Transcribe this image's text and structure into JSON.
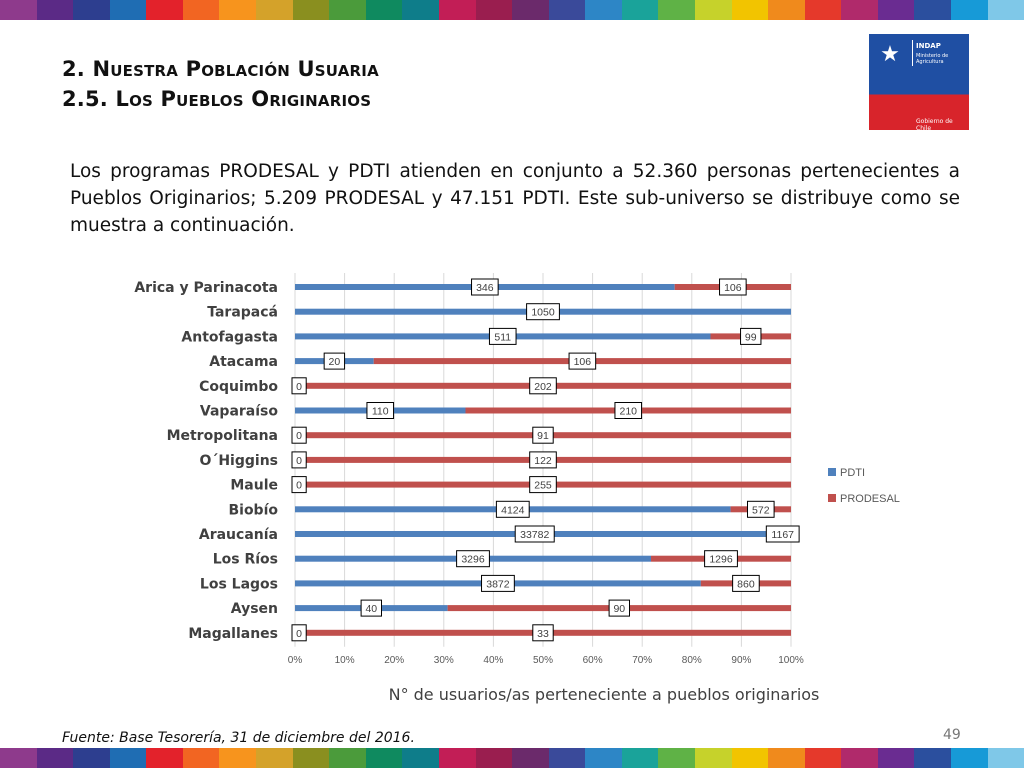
{
  "title": {
    "line1": "2. Nuestra Población Usuaria",
    "line2": "2.5. Los Pueblos Originarios"
  },
  "logo": {
    "name": "INDAP",
    "ministry": "Ministerio de Agricultura",
    "government": "Gobierno de Chile"
  },
  "paragraph": "Los programas PRODESAL y PDTI atienden en conjunto a 52.360 personas pertenecientes a Pueblos Originarios; 5.209 PRODESAL y 47.151 PDTI. Este sub-universo se distribuye como se muestra a continuación.",
  "source": "Fuente: Base Tesorería, 31 de diciembre del 2016.",
  "page_number": "49",
  "colors": {
    "pdti": "#4f81bd",
    "prodesal": "#c0504d",
    "stripe": [
      "#8e3a8c",
      "#5b2a86",
      "#2d3e8f",
      "#1f6db3",
      "#e3222b",
      "#f26522",
      "#f7941d",
      "#d4a22a",
      "#8a8f1f",
      "#4b9b3b",
      "#0f8a5f",
      "#0e7d8a",
      "#c21e56",
      "#9a1e4f",
      "#6b2a6b",
      "#3a4a9a",
      "#2d86c6",
      "#1aa39a",
      "#5fb246",
      "#c6d22b",
      "#f2c400",
      "#f08a1c",
      "#e5392b",
      "#b02a6b",
      "#6a2c91",
      "#2b4f9e",
      "#179ad7",
      "#7fc8e8"
    ]
  },
  "chart_data": {
    "type": "bar",
    "orientation": "horizontal",
    "stacked": "percent",
    "categories": [
      "Arica y Parinacota",
      "Tarapacá",
      "Antofagasta",
      "Atacama",
      "Coquimbo",
      "Vaparaíso",
      "Metropolitana",
      "O´Higgins",
      "Maule",
      "Biobío",
      "Araucanía",
      "Los Ríos",
      "Los Lagos",
      "Aysen",
      "Magallanes"
    ],
    "series": [
      {
        "name": "PDTI",
        "values": [
          346,
          1050,
          511,
          20,
          0,
          110,
          0,
          0,
          0,
          4124,
          33782,
          3296,
          3872,
          40,
          0
        ]
      },
      {
        "name": "PRODESAL",
        "values": [
          106,
          0,
          99,
          106,
          202,
          210,
          91,
          122,
          255,
          572,
          1167,
          1296,
          860,
          90,
          33
        ]
      }
    ],
    "data_labels": [
      [
        "346",
        "106"
      ],
      [
        "1050",
        ""
      ],
      [
        "511",
        "99"
      ],
      [
        "20",
        "106"
      ],
      [
        "0",
        "202"
      ],
      [
        "110",
        "210"
      ],
      [
        "0",
        "91"
      ],
      [
        "0",
        "122"
      ],
      [
        "0",
        "255"
      ],
      [
        "4124",
        "572"
      ],
      [
        "33782",
        "1167"
      ],
      [
        "3296",
        "1296"
      ],
      [
        "3872",
        "860"
      ],
      [
        "40",
        "90"
      ],
      [
        "0",
        "33"
      ]
    ],
    "xticks": [
      "0%",
      "10%",
      "20%",
      "30%",
      "40%",
      "50%",
      "60%",
      "70%",
      "80%",
      "90%",
      "100%"
    ],
    "xlim": [
      0,
      100
    ],
    "xlabel": "N° de usuarios/as perteneciente a pueblos originarios",
    "ylabel": "",
    "title": "",
    "grid": true,
    "legend": "right"
  }
}
